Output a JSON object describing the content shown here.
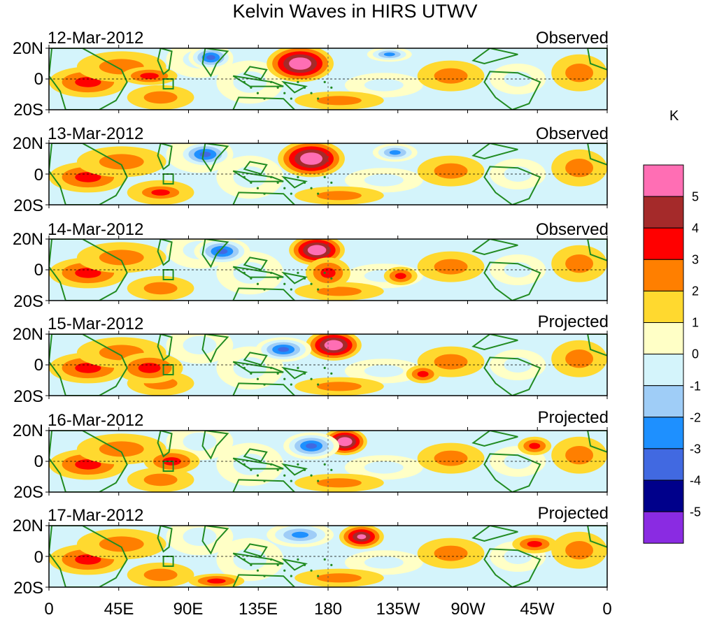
{
  "title": "Kelvin Waves in HIRS UTWV",
  "unit": "K",
  "panels": [
    {
      "date": "12-Mar-2012",
      "status": "Observed"
    },
    {
      "date": "13-Mar-2012",
      "status": "Observed"
    },
    {
      "date": "14-Mar-2012",
      "status": "Observed"
    },
    {
      "date": "15-Mar-2012",
      "status": "Projected"
    },
    {
      "date": "16-Mar-2012",
      "status": "Projected"
    },
    {
      "date": "17-Mar-2012",
      "status": "Projected"
    }
  ],
  "lat_labels": [
    "20N",
    "0",
    "20S"
  ],
  "lon_labels": [
    "0",
    "45E",
    "90E",
    "135E",
    "180",
    "135W",
    "90W",
    "45W",
    "0"
  ],
  "colorbar": {
    "labels": [
      "5",
      "4",
      "3",
      "2",
      "1",
      "0",
      "-1",
      "-2",
      "-3",
      "-4",
      "-5"
    ],
    "colors": [
      "#ff6eb4",
      "#a52a2a",
      "#ff0000",
      "#ff7f00",
      "#ffd92f",
      "#ffffc6",
      "#d4f4fb",
      "#9fcdf7",
      "#1e90ff",
      "#4169e1",
      "#00008b",
      "#8a2be2"
    ]
  },
  "coast_color": "#218b21"
}
